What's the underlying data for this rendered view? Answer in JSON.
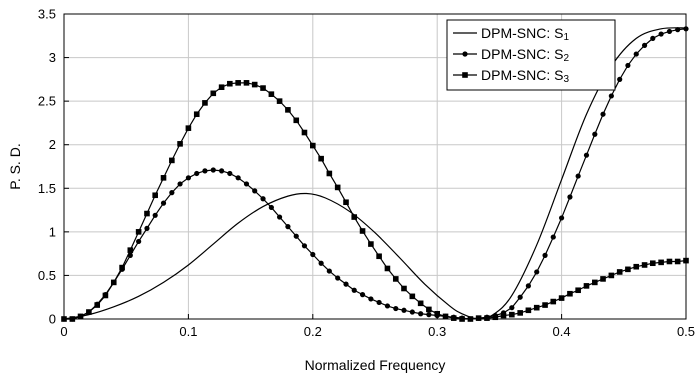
{
  "chart_data": {
    "type": "line",
    "title": "",
    "xlabel": "Normalized Frequency",
    "ylabel": "P. S. D.",
    "xlim": [
      0,
      0.5
    ],
    "ylim": [
      0,
      3.5
    ],
    "xticks": [
      0,
      0.1,
      0.2,
      0.3,
      0.4,
      0.5
    ],
    "xtick_labels": [
      "0",
      "0.1",
      "0.2",
      "0.3",
      "0.4",
      "0.5"
    ],
    "yticks": [
      0,
      0.5,
      1,
      1.5,
      2,
      2.5,
      3,
      3.5
    ],
    "ytick_labels": [
      "0",
      "0.5",
      "1",
      "1.5",
      "2",
      "2.5",
      "3",
      "3.5"
    ],
    "grid": true,
    "legend_position": "top-right",
    "colors": {
      "line": "#000000",
      "grid": "#c8c8c8",
      "frame": "#000000"
    },
    "series": [
      {
        "name": "DPM-SNC: S",
        "subscript": "1",
        "marker": "none",
        "x": [
          0,
          0.02,
          0.04,
          0.06,
          0.08,
          0.1,
          0.12,
          0.14,
          0.16,
          0.18,
          0.195,
          0.21,
          0.23,
          0.25,
          0.27,
          0.29,
          0.31,
          0.32,
          0.333,
          0.345,
          0.36,
          0.38,
          0.4,
          0.42,
          0.44,
          0.46,
          0.48,
          0.5
        ],
        "y": [
          0,
          0.05,
          0.14,
          0.26,
          0.42,
          0.62,
          0.86,
          1.1,
          1.29,
          1.41,
          1.44,
          1.39,
          1.23,
          0.99,
          0.7,
          0.4,
          0.15,
          0.06,
          0.0,
          0.05,
          0.27,
          0.85,
          1.6,
          2.35,
          2.9,
          3.22,
          3.33,
          3.34
        ]
      },
      {
        "name": "DPM-SNC: S",
        "subscript": "2",
        "marker": "circle",
        "x": [
          0,
          0.0067,
          0.0133,
          0.02,
          0.0267,
          0.0333,
          0.04,
          0.0467,
          0.0533,
          0.06,
          0.0667,
          0.0733,
          0.08,
          0.0867,
          0.0933,
          0.1,
          0.1067,
          0.1133,
          0.12,
          0.1267,
          0.1333,
          0.14,
          0.1467,
          0.1533,
          0.16,
          0.1667,
          0.1733,
          0.18,
          0.1867,
          0.1933,
          0.2,
          0.2067,
          0.2133,
          0.22,
          0.2267,
          0.2333,
          0.24,
          0.2467,
          0.2533,
          0.26,
          0.2667,
          0.2733,
          0.28,
          0.2867,
          0.2933,
          0.3,
          0.3067,
          0.3133,
          0.32,
          0.3267,
          0.3333,
          0.34,
          0.3467,
          0.3533,
          0.36,
          0.3667,
          0.3733,
          0.38,
          0.3867,
          0.3933,
          0.4,
          0.4067,
          0.4133,
          0.42,
          0.4267,
          0.4333,
          0.44,
          0.4467,
          0.4533,
          0.46,
          0.4667,
          0.4733,
          0.48,
          0.4867,
          0.4933,
          0.5
        ],
        "y": [
          0,
          0.0,
          0.03,
          0.08,
          0.17,
          0.28,
          0.42,
          0.57,
          0.73,
          0.89,
          1.04,
          1.19,
          1.33,
          1.45,
          1.55,
          1.62,
          1.67,
          1.7,
          1.71,
          1.7,
          1.67,
          1.62,
          1.55,
          1.47,
          1.38,
          1.28,
          1.17,
          1.06,
          0.95,
          0.84,
          0.74,
          0.64,
          0.55,
          0.47,
          0.4,
          0.33,
          0.28,
          0.23,
          0.19,
          0.15,
          0.12,
          0.1,
          0.08,
          0.06,
          0.05,
          0.04,
          0.03,
          0.02,
          0.01,
          0.0,
          0.01,
          0.02,
          0.04,
          0.07,
          0.13,
          0.25,
          0.38,
          0.54,
          0.73,
          0.94,
          1.16,
          1.4,
          1.64,
          1.88,
          2.12,
          2.35,
          2.56,
          2.75,
          2.91,
          3.04,
          3.14,
          3.22,
          3.27,
          3.3,
          3.32,
          3.33
        ]
      },
      {
        "name": "DPM-SNC: S",
        "subscript": "3",
        "marker": "square",
        "x": [
          0,
          0.0067,
          0.0133,
          0.02,
          0.0267,
          0.0333,
          0.04,
          0.0467,
          0.0533,
          0.06,
          0.0667,
          0.0733,
          0.08,
          0.0867,
          0.0933,
          0.1,
          0.1067,
          0.1133,
          0.12,
          0.1267,
          0.1333,
          0.14,
          0.1467,
          0.1533,
          0.16,
          0.1667,
          0.1733,
          0.18,
          0.1867,
          0.1933,
          0.2,
          0.2067,
          0.2133,
          0.22,
          0.2267,
          0.2333,
          0.24,
          0.2467,
          0.2533,
          0.26,
          0.2667,
          0.2733,
          0.28,
          0.2867,
          0.2933,
          0.3,
          0.3067,
          0.3133,
          0.32,
          0.3267,
          0.3333,
          0.34,
          0.3467,
          0.3533,
          0.36,
          0.3667,
          0.3733,
          0.38,
          0.3867,
          0.3933,
          0.4,
          0.4067,
          0.4133,
          0.42,
          0.4267,
          0.4333,
          0.44,
          0.4467,
          0.4533,
          0.46,
          0.4667,
          0.4733,
          0.48,
          0.4867,
          0.4933,
          0.5
        ],
        "y": [
          0,
          0.0,
          0.03,
          0.08,
          0.16,
          0.27,
          0.42,
          0.59,
          0.79,
          1.0,
          1.21,
          1.42,
          1.62,
          1.82,
          2.01,
          2.19,
          2.35,
          2.48,
          2.59,
          2.66,
          2.7,
          2.71,
          2.71,
          2.69,
          2.65,
          2.58,
          2.5,
          2.4,
          2.28,
          2.14,
          1.99,
          1.84,
          1.67,
          1.51,
          1.34,
          1.17,
          1.01,
          0.86,
          0.72,
          0.58,
          0.46,
          0.35,
          0.26,
          0.18,
          0.11,
          0.06,
          0.03,
          0.01,
          0.0,
          0.0,
          0.01,
          0.01,
          0.02,
          0.04,
          0.05,
          0.07,
          0.1,
          0.13,
          0.16,
          0.2,
          0.24,
          0.29,
          0.33,
          0.38,
          0.42,
          0.46,
          0.5,
          0.54,
          0.57,
          0.6,
          0.62,
          0.64,
          0.65,
          0.66,
          0.66,
          0.67
        ]
      }
    ]
  }
}
